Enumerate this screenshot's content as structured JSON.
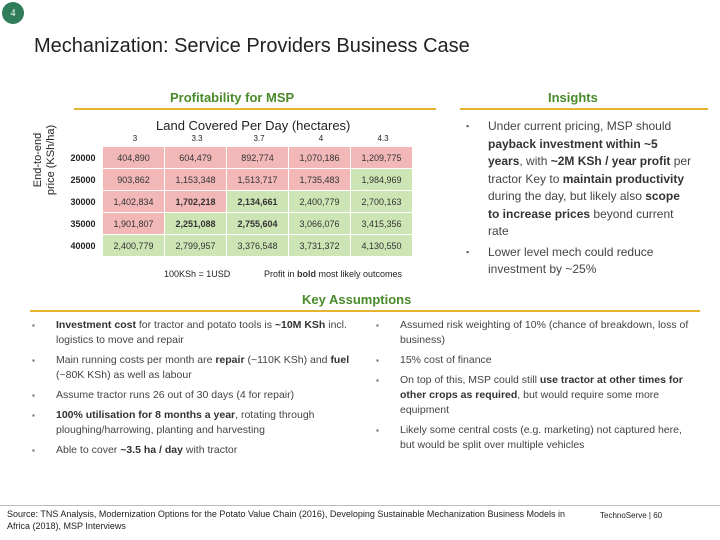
{
  "slide_number": "4",
  "title": "Mechanization: Service Providers Business Case",
  "left_header": "Profitability for MSP",
  "right_header": "Insights",
  "chart_title": "Land Covered Per Day (hectares)",
  "y_axis_label_line1": "End-to-end",
  "y_axis_label_line2": "price (KSh/ha)",
  "col_headers": [
    "3",
    "3.3",
    "3.7",
    "4",
    "4.3"
  ],
  "rows": [
    {
      "price": "20000",
      "cells": [
        "404,890",
        "604,479",
        "892,774",
        "1,070,186",
        "1,209,775"
      ],
      "colors": [
        "#f2b8b8",
        "#f2b8b8",
        "#f2b8b8",
        "#f2b8b8",
        "#f2b8b8"
      ]
    },
    {
      "price": "25000",
      "cells": [
        "903,862",
        "1,153,348",
        "1,513,717",
        "1,735,483",
        "1,984,969"
      ],
      "colors": [
        "#f2b8b8",
        "#f2b8b8",
        "#f2b8b8",
        "#f2b8b8",
        "#cde5b5"
      ]
    },
    {
      "price": "30000",
      "cells": [
        "1,402,834",
        "1,702,218",
        "2,134,661",
        "2,400,779",
        "2,700,163"
      ],
      "colors": [
        "#f2b8b8",
        "#f2b8b8",
        "#cde5b5",
        "#cde5b5",
        "#cde5b5"
      ],
      "bold": [
        false,
        true,
        true,
        false,
        false
      ]
    },
    {
      "price": "35000",
      "cells": [
        "1,901,807",
        "2,251,088",
        "2,755,604",
        "3,066,076",
        "3,415,356"
      ],
      "colors": [
        "#f2b8b8",
        "#cde5b5",
        "#cde5b5",
        "#cde5b5",
        "#cde5b5"
      ],
      "bold": [
        false,
        true,
        true,
        false,
        false
      ]
    },
    {
      "price": "40000",
      "cells": [
        "2,400,779",
        "2,799,957",
        "3,376,548",
        "3,731,372",
        "4,130,550"
      ],
      "colors": [
        "#cde5b5",
        "#cde5b5",
        "#cde5b5",
        "#cde5b5",
        "#cde5b5"
      ]
    }
  ],
  "fx_note": "100KSh = 1USD",
  "profit_note_pre": "Profit in ",
  "profit_note_bold": "bold",
  "profit_note_post": " most likely outcomes",
  "key_assumptions_header": "Key Assumptions",
  "insights": [
    {
      "parts": [
        [
          "Under current pricing, MSP should ",
          false
        ],
        [
          "payback investment within ~5 years",
          true
        ],
        [
          ", with ",
          false
        ],
        [
          "~2M KSh / year profit",
          true
        ],
        [
          " per tractor Key to ",
          false
        ],
        [
          "maintain productivity",
          true
        ],
        [
          " during the day, but likely also ",
          false
        ],
        [
          "scope to increase prices",
          true
        ],
        [
          " beyond current rate",
          false
        ]
      ]
    },
    {
      "parts": [
        [
          "Lower level mech could reduce investment by ~25%",
          false
        ]
      ]
    }
  ],
  "assumptions_left": [
    {
      "parts": [
        [
          "Investment cost",
          true
        ],
        [
          " for tractor and potato tools is ",
          false
        ],
        [
          "~10M KSh",
          true
        ],
        [
          " incl. logistics to move and repair",
          false
        ]
      ]
    },
    {
      "parts": [
        [
          "Main running costs per month are ",
          false
        ],
        [
          "repair",
          true
        ],
        [
          " (~110K KSh) and ",
          false
        ],
        [
          "fuel",
          true
        ],
        [
          " (~80K KSh) as well as labour",
          false
        ]
      ]
    },
    {
      "parts": [
        [
          "Assume tractor runs 26 out of 30 days (4 for repair)",
          false
        ]
      ]
    },
    {
      "parts": [
        [
          "100% utilisation for 8 months a year",
          true
        ],
        [
          ", rotating through ploughing/harrowing, planting and harvesting",
          false
        ]
      ]
    },
    {
      "parts": [
        [
          "Able to cover ",
          false
        ],
        [
          "~3.5 ha / day",
          true
        ],
        [
          " with tractor",
          false
        ]
      ]
    }
  ],
  "assumptions_right": [
    {
      "parts": [
        [
          "Assumed risk weighting of 10% (chance of breakdown, loss of business)",
          false
        ]
      ]
    },
    {
      "parts": [
        [
          "15% cost of finance",
          false
        ]
      ]
    },
    {
      "parts": [
        [
          "On top of this, MSP could still ",
          false
        ],
        [
          "use tractor at other times for other crops as required",
          true
        ],
        [
          ", but would require some more equipment",
          false
        ]
      ]
    },
    {
      "parts": [
        [
          "Likely some central costs (e.g. marketing) not captured here, but would be split over multiple vehicles",
          false
        ]
      ]
    }
  ],
  "source": "Source: TNS Analysis, Modernization Options for the Potato Value Chain (2016), Developing Sustainable Mechanization Business Models in Africa (2018), MSP Interviews",
  "footer": "TechnoServe | 60"
}
